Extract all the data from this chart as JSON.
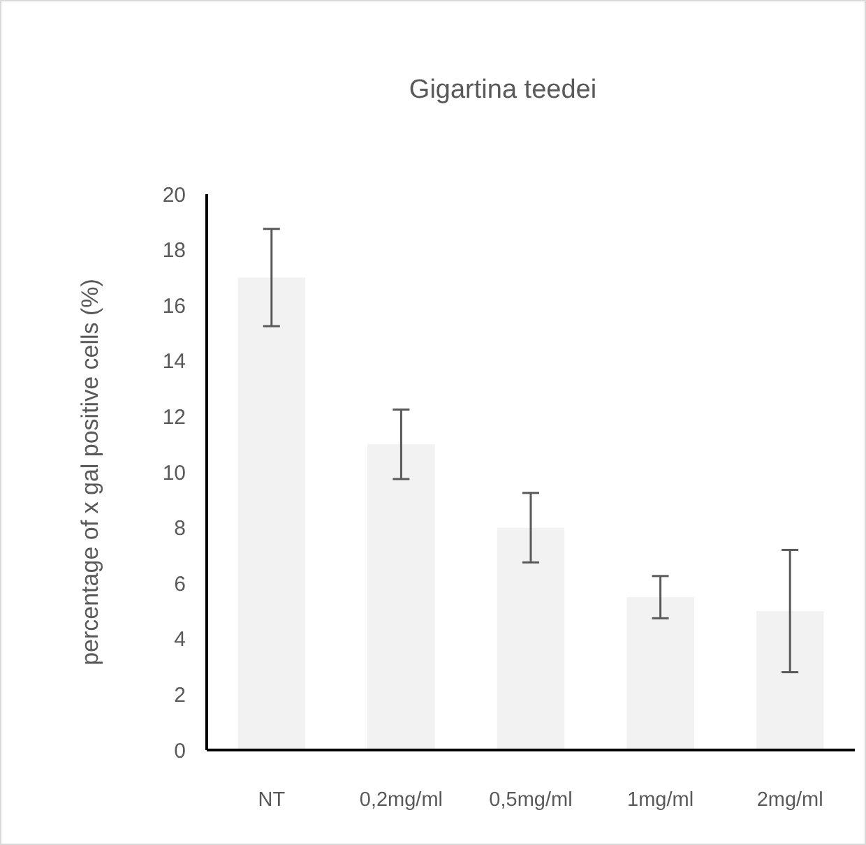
{
  "chart_data": {
    "type": "bar",
    "title": "Gigartina teedei",
    "ylabel": "percentage of x gal positive cells (%)",
    "categories": [
      "NT",
      "0,2mg/ml",
      "0,5mg/ml",
      "1mg/ml",
      "2mg/ml"
    ],
    "values": [
      17,
      11,
      8,
      5.5,
      5
    ],
    "errors": [
      1.75,
      1.25,
      1.25,
      0.76,
      2.2
    ],
    "color": "#f2f2f2",
    "ylim": [
      0,
      20
    ],
    "yticks": [
      0,
      2,
      4,
      6,
      8,
      10,
      12,
      14,
      16,
      18,
      20
    ],
    "grid": false
  }
}
